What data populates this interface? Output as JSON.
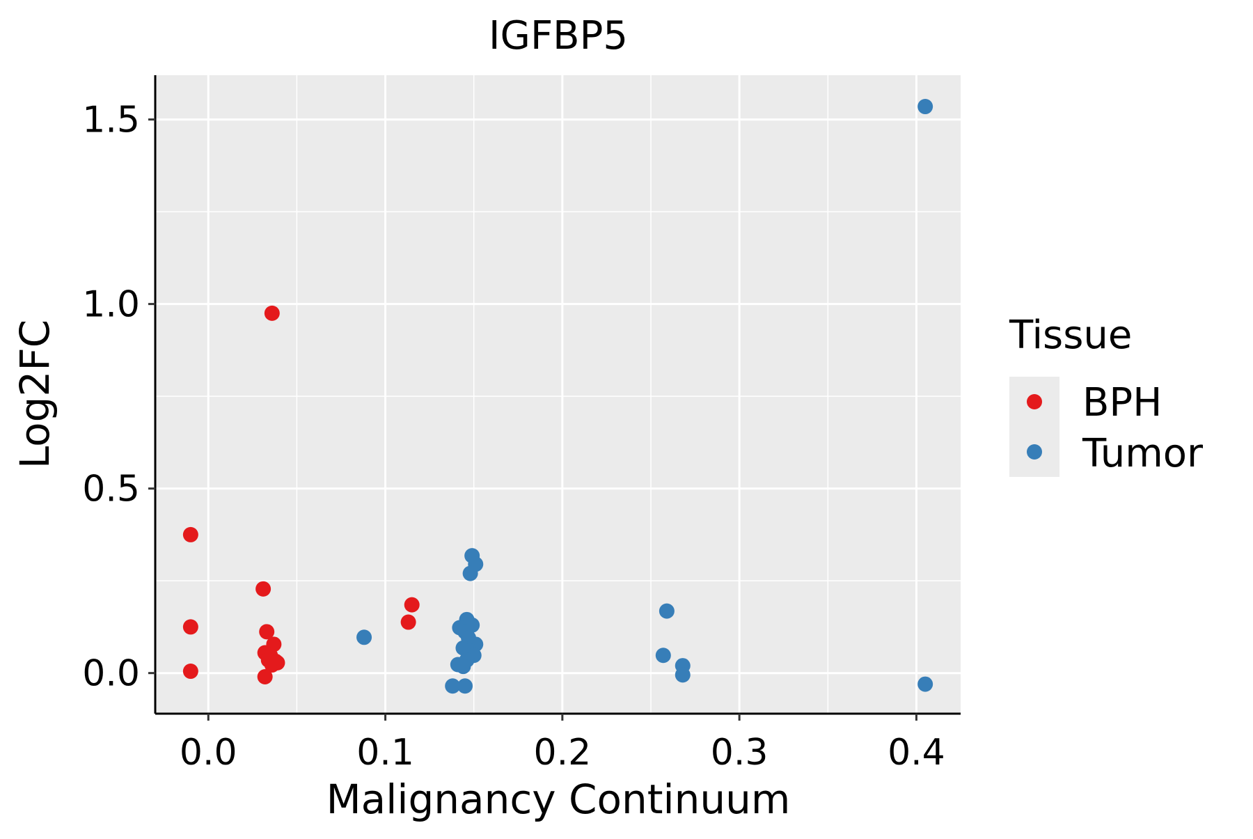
{
  "chart_data": {
    "type": "scatter",
    "title": "IGFBP5",
    "xlabel": "Malignancy Continuum",
    "ylabel": "Log2FC",
    "xlim": [
      -0.03,
      0.425
    ],
    "ylim": [
      -0.11,
      1.62
    ],
    "x_ticks": [
      0.0,
      0.1,
      0.2,
      0.3,
      0.4
    ],
    "x_tick_labels": [
      "0.0",
      "0.1",
      "0.2",
      "0.3",
      "0.4"
    ],
    "y_ticks": [
      0.0,
      0.5,
      1.0,
      1.5
    ],
    "y_tick_labels": [
      "0.0",
      "0.5",
      "1.0",
      "1.5"
    ],
    "grid": true,
    "legend": {
      "title": "Tissue",
      "position": "right",
      "entries": [
        "BPH",
        "Tumor"
      ]
    },
    "series": [
      {
        "name": "BPH",
        "color": "#E41A1C",
        "points": [
          [
            -0.01,
            0.375
          ],
          [
            -0.01,
            0.125
          ],
          [
            -0.01,
            0.005
          ],
          [
            0.036,
            0.975
          ],
          [
            0.031,
            0.228
          ],
          [
            0.033,
            0.112
          ],
          [
            0.037,
            0.078
          ],
          [
            0.032,
            0.055
          ],
          [
            0.035,
            0.048
          ],
          [
            0.038,
            0.032
          ],
          [
            0.034,
            0.035
          ],
          [
            0.036,
            0.022
          ],
          [
            0.039,
            0.028
          ],
          [
            0.032,
            -0.01
          ],
          [
            0.115,
            0.185
          ],
          [
            0.113,
            0.138
          ]
        ]
      },
      {
        "name": "Tumor",
        "color": "#377EB8",
        "points": [
          [
            0.405,
            1.535
          ],
          [
            0.405,
            -0.03
          ],
          [
            0.088,
            0.097
          ],
          [
            0.149,
            0.318
          ],
          [
            0.151,
            0.295
          ],
          [
            0.148,
            0.27
          ],
          [
            0.146,
            0.145
          ],
          [
            0.142,
            0.123
          ],
          [
            0.149,
            0.13
          ],
          [
            0.145,
            0.112
          ],
          [
            0.147,
            0.095
          ],
          [
            0.151,
            0.078
          ],
          [
            0.144,
            0.068
          ],
          [
            0.148,
            0.06
          ],
          [
            0.15,
            0.048
          ],
          [
            0.146,
            0.035
          ],
          [
            0.141,
            0.023
          ],
          [
            0.144,
            0.018
          ],
          [
            0.138,
            -0.035
          ],
          [
            0.145,
            -0.035
          ],
          [
            0.259,
            0.168
          ],
          [
            0.257,
            0.048
          ],
          [
            0.268,
            0.02
          ],
          [
            0.268,
            -0.005
          ]
        ]
      }
    ]
  }
}
